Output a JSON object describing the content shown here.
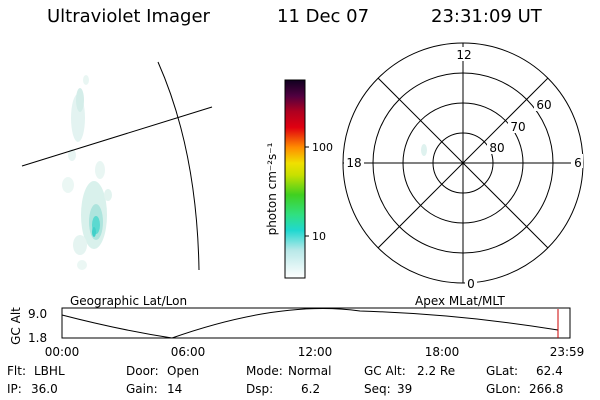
{
  "header": {
    "instrument": "Ultraviolet Imager",
    "date": "11 Dec 07",
    "time": "23:31:09 UT"
  },
  "colorbar": {
    "label": "photon cm⁻²s⁻¹",
    "ticks": [
      "100",
      "10"
    ]
  },
  "polar_plot": {
    "mlt_labels": [
      "12",
      "18",
      "6",
      "0"
    ],
    "lat_labels": [
      "60",
      "70",
      "80"
    ]
  },
  "projections": {
    "left": "Geographic Lat/Lon",
    "right": "Apex MLat/MLT"
  },
  "altitude_strip": {
    "ylabel": "GC Alt",
    "y_ticks": [
      "9.0",
      "1.8"
    ],
    "x_ticks": [
      "00:00",
      "06:00",
      "12:00",
      "18:00",
      "23:59"
    ],
    "current_marker_color": "#cc0000"
  },
  "info": {
    "flt_label": "Flt:",
    "flt_value": "LBHL",
    "ip_label": "IP:",
    "ip_value": "36.0",
    "door_label": "Door:",
    "door_value": "Open",
    "gain_label": "Gain:",
    "gain_value": "14",
    "mode_label": "Mode:",
    "mode_value": "Normal",
    "dsp_label": "Dsp:",
    "dsp_value": "6.2",
    "gcalt_label": "GC Alt:",
    "gcalt_value": "2.2 Re",
    "seq_label": "Seq:",
    "seq_value": "39",
    "glat_label": "GLat:",
    "glat_value": "62.4",
    "glon_label": "GLon:",
    "glon_value": "266.8"
  }
}
